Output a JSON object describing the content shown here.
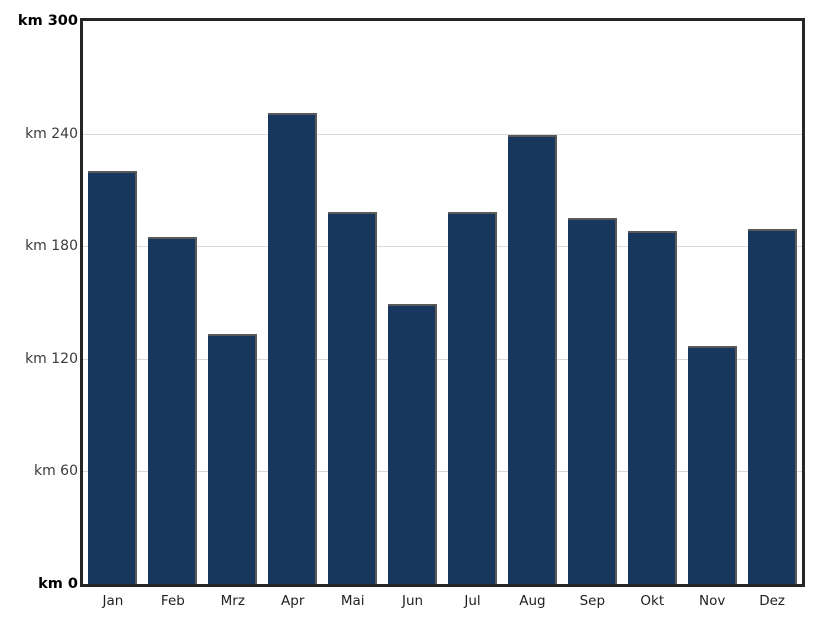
{
  "chart_data": {
    "type": "bar",
    "title": "",
    "xlabel": "",
    "ylabel": "km",
    "unit": "km",
    "categories": [
      "Jan",
      "Feb",
      "Mrz",
      "Apr",
      "Mai",
      "Jun",
      "Jul",
      "Aug",
      "Sep",
      "Okt",
      "Nov",
      "Dez"
    ],
    "values": [
      220,
      185,
      133,
      251,
      198,
      149,
      198,
      239,
      195,
      188,
      127,
      189
    ],
    "ylim": [
      0,
      300
    ],
    "grid": true,
    "gridline_values": [
      240,
      180,
      120,
      60
    ],
    "legend_position": "none",
    "y_ticks": [
      {
        "label": "km 300",
        "value": 300,
        "bold": true
      },
      {
        "label": "km 240",
        "value": 240,
        "bold": false
      },
      {
        "label": "km 180",
        "value": 180,
        "bold": false
      },
      {
        "label": "km 120",
        "value": 120,
        "bold": false
      },
      {
        "label": "km 60",
        "value": 60,
        "bold": false
      },
      {
        "label": "km 0",
        "value": 0,
        "bold": true
      }
    ],
    "colors": {
      "bar_fill": "#17375e",
      "bar_edge": "#595959",
      "gridline": "#d9d9d9",
      "plot_border": "#262626",
      "tick_label": "#3a3a3a",
      "tick_label_bold": "#000000",
      "background": "#ffffff"
    }
  }
}
